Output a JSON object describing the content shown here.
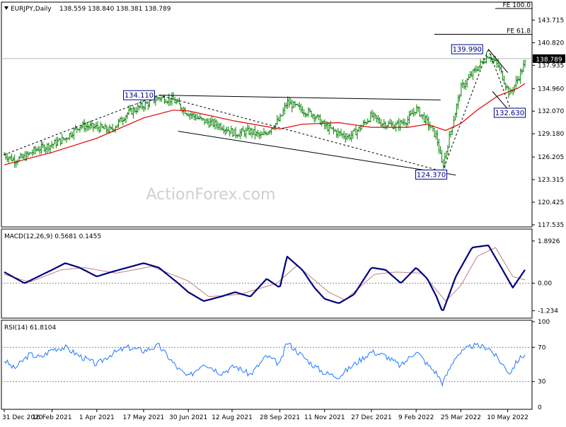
{
  "header": {
    "symbol_label": "EURJPY,Daily",
    "ohlc_label": "138.559 138.840 138.381 138.789"
  },
  "watermark": "ActionForex.com",
  "colors": {
    "bars": "#008000",
    "ma": "#e00000",
    "macd": "#000080",
    "signal": "#c08080",
    "rsi": "#1e78ff",
    "last_price_bg": "#000000",
    "box_border": "#000080"
  },
  "chart_data": [
    {
      "type": "ohlc",
      "panel": "price",
      "ylim": [
        117.535,
        145.2
      ],
      "yticks": [
        "143.715",
        "140.820",
        "137.935",
        "134.960",
        "132.070",
        "129.180",
        "126.205",
        "123.315",
        "120.425",
        "117.535"
      ],
      "last_price": 138.789,
      "last_price_label": "138.789",
      "fib_levels": [
        {
          "label": "FE 100.0",
          "value": 145.2
        },
        {
          "label": "FE 61.8",
          "value": 141.9
        }
      ],
      "annotations": [
        {
          "label": "134.110",
          "value": 134.11,
          "date": "2021-06-01"
        },
        {
          "label": "139.990",
          "value": 139.99,
          "date": "2022-04-21"
        },
        {
          "label": "132.630",
          "value": 132.63,
          "date": "2022-05-12"
        },
        {
          "label": "124.370",
          "value": 124.37,
          "date": "2022-03-07"
        }
      ],
      "series": [
        {
          "kind": "price",
          "points": [
            [
              "2020-12-31",
              126.5
            ],
            [
              "2021-01-10",
              125.8
            ],
            [
              "2021-01-20",
              126.2
            ],
            [
              "2021-02-01",
              127.2
            ],
            [
              "2021-02-16",
              127.8
            ],
            [
              "2021-03-01",
              128.6
            ],
            [
              "2021-03-15",
              130.2
            ],
            [
              "2021-04-01",
              130.0
            ],
            [
              "2021-04-15",
              129.6
            ],
            [
              "2021-05-01",
              131.8
            ],
            [
              "2021-05-17",
              132.8
            ],
            [
              "2021-06-01",
              133.8
            ],
            [
              "2021-06-15",
              133.5
            ],
            [
              "2021-06-30",
              131.8
            ],
            [
              "2021-07-15",
              130.8
            ],
            [
              "2021-08-01",
              130.2
            ],
            [
              "2021-08-15",
              129.2
            ],
            [
              "2021-08-30",
              129.5
            ],
            [
              "2021-09-10",
              128.8
            ],
            [
              "2021-09-28",
              131.0
            ],
            [
              "2021-10-05",
              133.2
            ],
            [
              "2021-10-20",
              132.2
            ],
            [
              "2021-11-01",
              131.6
            ],
            [
              "2021-11-11",
              130.2
            ],
            [
              "2021-11-25",
              129.2
            ],
            [
              "2021-12-05",
              128.8
            ],
            [
              "2021-12-15",
              129.8
            ],
            [
              "2021-12-27",
              131.5
            ],
            [
              "2022-01-05",
              130.6
            ],
            [
              "2022-01-20",
              130.2
            ],
            [
              "2022-02-01",
              131.0
            ],
            [
              "2022-02-09",
              132.4
            ],
            [
              "2022-02-20",
              130.6
            ],
            [
              "2022-03-01",
              128.8
            ],
            [
              "2022-03-07",
              124.9
            ],
            [
              "2022-03-15",
              129.5
            ],
            [
              "2022-03-25",
              135.0
            ],
            [
              "2022-04-05",
              136.8
            ],
            [
              "2022-04-21",
              139.3
            ],
            [
              "2022-05-01",
              137.8
            ],
            [
              "2022-05-12",
              134.2
            ],
            [
              "2022-05-20",
              136.2
            ],
            [
              "2022-05-27",
              138.2
            ]
          ]
        },
        {
          "kind": "ma",
          "points": [
            [
              "2020-12-31",
              125.2
            ],
            [
              "2021-02-16",
              126.8
            ],
            [
              "2021-04-01",
              128.6
            ],
            [
              "2021-05-17",
              131.2
            ],
            [
              "2021-06-15",
              132.2
            ],
            [
              "2021-06-30",
              132.1
            ],
            [
              "2021-08-15",
              130.8
            ],
            [
              "2021-09-28",
              129.8
            ],
            [
              "2021-10-20",
              130.4
            ],
            [
              "2021-11-25",
              130.6
            ],
            [
              "2021-12-27",
              130.0
            ],
            [
              "2022-02-01",
              130.0
            ],
            [
              "2022-02-20",
              130.4
            ],
            [
              "2022-03-10",
              129.6
            ],
            [
              "2022-03-25",
              130.5
            ],
            [
              "2022-04-10",
              132.2
            ],
            [
              "2022-04-30",
              134.0
            ],
            [
              "2022-05-20",
              135.0
            ],
            [
              "2022-05-27",
              135.6
            ]
          ]
        }
      ],
      "trendlines": [
        {
          "from": [
            "2021-06-01",
            134.11
          ],
          "to": [
            "2022-03-05",
            133.5
          ]
        },
        {
          "from": [
            "2021-06-20",
            129.5
          ],
          "to": [
            "2022-03-20",
            123.9
          ]
        },
        {
          "from": [
            "2020-12-31",
            126.5
          ],
          "to": [
            "2021-06-01",
            134.11
          ]
        },
        {
          "from": [
            "2021-06-01",
            134.11
          ],
          "to": [
            "2022-03-07",
            124.37
          ]
        },
        {
          "from": [
            "2022-03-07",
            124.37
          ],
          "to": [
            "2022-04-21",
            139.99
          ]
        },
        {
          "from": [
            "2022-04-21",
            139.99
          ],
          "to": [
            "2022-05-12",
            132.63
          ]
        },
        {
          "from": [
            "2022-04-21",
            139.99
          ],
          "to": [
            "2022-05-10",
            137.0
          ]
        },
        {
          "from": [
            "2022-04-25",
            134.6
          ],
          "to": [
            "2022-05-15",
            131.6
          ]
        }
      ]
    },
    {
      "type": "line",
      "panel": "macd",
      "title": "MACD(12,26,9) 0.5681 0.1455",
      "ylim": [
        -1.5,
        2.3
      ],
      "yticks": [
        "1.8926",
        "0.00",
        "-1.234"
      ],
      "series": [
        {
          "kind": "macd",
          "points": [
            [
              "2020-12-31",
              0.5
            ],
            [
              "2021-01-20",
              0.0
            ],
            [
              "2021-02-16",
              0.6
            ],
            [
              "2021-03-01",
              0.9
            ],
            [
              "2021-03-15",
              0.7
            ],
            [
              "2021-04-01",
              0.3
            ],
            [
              "2021-04-15",
              0.5
            ],
            [
              "2021-05-01",
              0.7
            ],
            [
              "2021-05-17",
              0.9
            ],
            [
              "2021-06-01",
              0.7
            ],
            [
              "2021-06-20",
              0.0
            ],
            [
              "2021-06-30",
              -0.4
            ],
            [
              "2021-07-15",
              -0.8
            ],
            [
              "2021-08-01",
              -0.6
            ],
            [
              "2021-08-15",
              -0.4
            ],
            [
              "2021-08-30",
              -0.6
            ],
            [
              "2021-09-15",
              0.2
            ],
            [
              "2021-09-28",
              -0.2
            ],
            [
              "2021-10-05",
              1.2
            ],
            [
              "2021-10-20",
              0.6
            ],
            [
              "2021-11-01",
              -0.2
            ],
            [
              "2021-11-11",
              -0.7
            ],
            [
              "2021-11-25",
              -0.9
            ],
            [
              "2021-12-10",
              -0.5
            ],
            [
              "2021-12-27",
              0.7
            ],
            [
              "2022-01-10",
              0.6
            ],
            [
              "2022-01-25",
              0.0
            ],
            [
              "2022-02-09",
              0.7
            ],
            [
              "2022-02-20",
              0.2
            ],
            [
              "2022-03-01",
              -0.6
            ],
            [
              "2022-03-07",
              -1.3
            ],
            [
              "2022-03-20",
              0.3
            ],
            [
              "2022-04-05",
              1.6
            ],
            [
              "2022-04-21",
              1.7
            ],
            [
              "2022-05-05",
              0.6
            ],
            [
              "2022-05-15",
              -0.2
            ],
            [
              "2022-05-27",
              0.6
            ]
          ]
        },
        {
          "kind": "signal",
          "points": [
            [
              "2020-12-31",
              0.4
            ],
            [
              "2021-01-25",
              0.05
            ],
            [
              "2021-02-25",
              0.6
            ],
            [
              "2021-03-20",
              0.7
            ],
            [
              "2021-04-20",
              0.45
            ],
            [
              "2021-05-25",
              0.75
            ],
            [
              "2021-06-30",
              0.1
            ],
            [
              "2021-07-20",
              -0.6
            ],
            [
              "2021-08-20",
              -0.5
            ],
            [
              "2021-09-25",
              0.0
            ],
            [
              "2021-10-15",
              0.8
            ],
            [
              "2021-11-15",
              -0.4
            ],
            [
              "2021-12-01",
              -0.75
            ],
            [
              "2021-12-30",
              0.4
            ],
            [
              "2022-01-20",
              0.5
            ],
            [
              "2022-02-15",
              0.45
            ],
            [
              "2022-03-10",
              -0.8
            ],
            [
              "2022-03-25",
              -0.1
            ],
            [
              "2022-04-10",
              1.2
            ],
            [
              "2022-04-28",
              1.6
            ],
            [
              "2022-05-15",
              0.3
            ],
            [
              "2022-05-27",
              0.15
            ]
          ]
        }
      ]
    },
    {
      "type": "line",
      "panel": "rsi",
      "title": "RSI(14) 61.8104",
      "ylim": [
        0,
        100
      ],
      "yticks": [
        "100",
        "70",
        "30",
        "0"
      ],
      "series": [
        {
          "kind": "rsi",
          "points": [
            [
              "2020-12-31",
              55
            ],
            [
              "2021-01-10",
              45
            ],
            [
              "2021-01-25",
              62
            ],
            [
              "2021-02-05",
              58
            ],
            [
              "2021-02-16",
              68
            ],
            [
              "2021-03-01",
              70
            ],
            [
              "2021-03-15",
              60
            ],
            [
              "2021-04-01",
              50
            ],
            [
              "2021-04-15",
              62
            ],
            [
              "2021-05-01",
              70
            ],
            [
              "2021-05-17",
              66
            ],
            [
              "2021-06-01",
              72
            ],
            [
              "2021-06-20",
              45
            ],
            [
              "2021-06-30",
              35
            ],
            [
              "2021-07-15",
              52
            ],
            [
              "2021-08-01",
              40
            ],
            [
              "2021-08-15",
              48
            ],
            [
              "2021-08-30",
              38
            ],
            [
              "2021-09-15",
              60
            ],
            [
              "2021-09-28",
              50
            ],
            [
              "2021-10-05",
              76
            ],
            [
              "2021-10-20",
              60
            ],
            [
              "2021-11-01",
              48
            ],
            [
              "2021-11-11",
              40
            ],
            [
              "2021-11-25",
              36
            ],
            [
              "2021-12-10",
              50
            ],
            [
              "2021-12-27",
              65
            ],
            [
              "2022-01-10",
              60
            ],
            [
              "2022-01-25",
              48
            ],
            [
              "2022-02-09",
              66
            ],
            [
              "2022-02-20",
              50
            ],
            [
              "2022-03-01",
              40
            ],
            [
              "2022-03-07",
              28
            ],
            [
              "2022-03-20",
              60
            ],
            [
              "2022-04-05",
              72
            ],
            [
              "2022-04-21",
              70
            ],
            [
              "2022-05-05",
              50
            ],
            [
              "2022-05-12",
              40
            ],
            [
              "2022-05-20",
              55
            ],
            [
              "2022-05-27",
              62
            ]
          ]
        }
      ]
    }
  ],
  "xaxis": {
    "start": "2020-12-31",
    "end": "2022-05-27",
    "ticks": [
      {
        "label": "31 Dec 2020",
        "date": "2020-12-31"
      },
      {
        "label": "16 Feb 2021",
        "date": "2021-02-16"
      },
      {
        "label": "1 Apr 2021",
        "date": "2021-04-01"
      },
      {
        "label": "17 May 2021",
        "date": "2021-05-17"
      },
      {
        "label": "30 Jun 2021",
        "date": "2021-06-30"
      },
      {
        "label": "12 Aug 2021",
        "date": "2021-08-12"
      },
      {
        "label": "28 Sep 2021",
        "date": "2021-09-28"
      },
      {
        "label": "11 Nov 2021",
        "date": "2021-11-11"
      },
      {
        "label": "27 Dec 2021",
        "date": "2021-12-27"
      },
      {
        "label": "9 Feb 2022",
        "date": "2022-02-09"
      },
      {
        "label": "25 Mar 2022",
        "date": "2022-03-25"
      },
      {
        "label": "10 May 2022",
        "date": "2022-05-10"
      }
    ]
  }
}
